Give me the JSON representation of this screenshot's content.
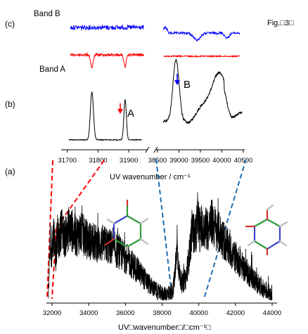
{
  "figure_label": "Fig.□3□",
  "chart_data": [
    {
      "panel": "(a)",
      "type": "line",
      "xlabel": "UV□wavenumber□/□cm⁻¹□",
      "xlim": [
        31800,
        44100
      ],
      "xticks": [
        32000,
        34000,
        36000,
        38000,
        40000,
        42000,
        44000
      ],
      "color": "#000000",
      "grid": false,
      "profile": [
        [
          31800,
          0.05
        ],
        [
          31850,
          0.3
        ],
        [
          31900,
          0.55
        ],
        [
          31950,
          0.35
        ],
        [
          32000,
          0.45
        ],
        [
          32100,
          0.62
        ],
        [
          32200,
          0.4
        ],
        [
          32300,
          0.58
        ],
        [
          32400,
          0.52
        ],
        [
          32500,
          0.66
        ],
        [
          32700,
          0.55
        ],
        [
          32900,
          0.64
        ],
        [
          33100,
          0.62
        ],
        [
          33300,
          0.56
        ],
        [
          33500,
          0.6
        ],
        [
          33700,
          0.58
        ],
        [
          33900,
          0.54
        ],
        [
          34200,
          0.52
        ],
        [
          34500,
          0.5
        ],
        [
          34800,
          0.5
        ],
        [
          35100,
          0.48
        ],
        [
          35400,
          0.45
        ],
        [
          35700,
          0.42
        ],
        [
          36000,
          0.38
        ],
        [
          36300,
          0.33
        ],
        [
          36600,
          0.28
        ],
        [
          36900,
          0.22
        ],
        [
          37200,
          0.16
        ],
        [
          37500,
          0.11
        ],
        [
          37800,
          0.07
        ],
        [
          38100,
          0.05
        ],
        [
          38400,
          0.06
        ],
        [
          38600,
          0.1
        ],
        [
          38750,
          0.28
        ],
        [
          38820,
          0.56
        ],
        [
          38860,
          0.38
        ],
        [
          38950,
          0.22
        ],
        [
          39100,
          0.14
        ],
        [
          39300,
          0.2
        ],
        [
          39500,
          0.42
        ],
        [
          39650,
          0.64
        ],
        [
          39750,
          0.58
        ],
        [
          39850,
          0.6
        ],
        [
          39950,
          0.76
        ],
        [
          40050,
          0.62
        ],
        [
          40150,
          0.66
        ],
        [
          40250,
          0.58
        ],
        [
          40400,
          0.66
        ],
        [
          40550,
          0.62
        ],
        [
          40700,
          0.7
        ],
        [
          40850,
          0.66
        ],
        [
          41000,
          0.62
        ],
        [
          41200,
          0.58
        ],
        [
          41400,
          0.52
        ],
        [
          41700,
          0.44
        ],
        [
          42000,
          0.38
        ],
        [
          42400,
          0.3
        ],
        [
          42800,
          0.22
        ],
        [
          43200,
          0.15
        ],
        [
          43600,
          0.09
        ],
        [
          44000,
          0.06
        ]
      ]
    },
    {
      "panel": "(b)",
      "type": "line",
      "xlabel": "UV wavenumber / cm⁻¹",
      "axis_break": [
        31950,
        38500
      ],
      "xlim_left": [
        31680,
        31950
      ],
      "xlim_right": [
        38500,
        40500
      ],
      "xticks": [
        31700,
        31800,
        31900,
        38500,
        39000,
        39500,
        40000,
        40500
      ],
      "xtick_labels": [
        "31700",
        "31800",
        "31900",
        "38500",
        "39000",
        "39500",
        "40000",
        "40500"
      ],
      "color": "#000000",
      "peaks_left": [
        [
          31780,
          0.62,
          5
        ],
        [
          31888,
          0.52,
          4
        ]
      ],
      "peaks_right": [
        [
          38930,
          0.95,
          70
        ],
        [
          39880,
          0.35,
          400
        ],
        [
          39940,
          0.4,
          140
        ]
      ],
      "annotations": [
        {
          "text": "A",
          "x": 31888,
          "arrow_color": "#ff0000"
        },
        {
          "text": "B",
          "x": 38930,
          "arrow_color": "#0000ff"
        }
      ]
    },
    {
      "panel": "(c)",
      "type": "line",
      "xlim_left": [
        31680,
        31950
      ],
      "xlim_right": [
        38500,
        40500
      ],
      "series": [
        {
          "name": "Band B",
          "color": "#0000ff",
          "dips_left": [],
          "dips_right": [
            [
              38640,
              0.6,
              30
            ],
            [
              39420,
              0.7,
              80
            ],
            [
              40120,
              0.5,
              50
            ]
          ]
        },
        {
          "name": "Band A",
          "color": "#ff0000",
          "dips_left": [
            [
              31780,
              1.0,
              4
            ],
            [
              31888,
              0.9,
              4
            ]
          ],
          "dips_right": []
        }
      ]
    }
  ],
  "panels": {
    "a": "(a)",
    "b": "(b)",
    "c": "(c)"
  },
  "labels": {
    "peak_a": "A",
    "peak_b": "B",
    "band_a": "Band A",
    "band_b": "Band B"
  }
}
